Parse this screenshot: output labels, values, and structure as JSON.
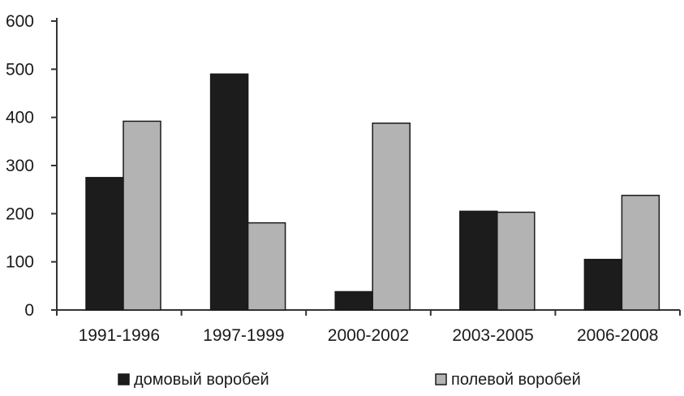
{
  "chart_data": {
    "type": "bar",
    "categories": [
      "1991-1996",
      "1997-1999",
      "2000-2002",
      "2003-2005",
      "2006-2008"
    ],
    "series": [
      {
        "name": "домовый воробей",
        "color": "#1c1c1c",
        "values": [
          275,
          490,
          38,
          205,
          105
        ]
      },
      {
        "name": "полевой воробей",
        "color": "#b3b3b3",
        "values": [
          392,
          181,
          388,
          203,
          238
        ]
      }
    ],
    "y_ticks": [
      "0",
      "100",
      "200",
      "300",
      "400",
      "500",
      "600"
    ],
    "ylim": [
      0,
      600
    ],
    "grid": false,
    "legend_position": "bottom",
    "title": "",
    "xlabel": "",
    "ylabel": ""
  }
}
